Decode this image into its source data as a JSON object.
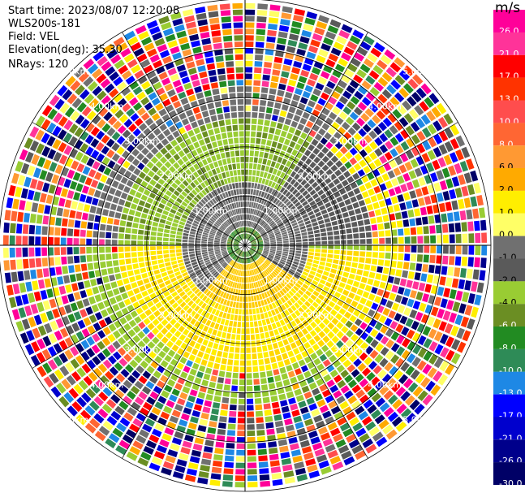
{
  "header": {
    "start_time": "Start time: 2023/08/07 12:20:08",
    "instrument": "WLS200s-181",
    "field": "Field: VEL",
    "elevation": "Elevation(deg): 35.30",
    "nrays": "NRays: 120"
  },
  "colorbar": {
    "unit": "m/s",
    "ticks": [
      "26.0",
      "21.0",
      "17.0",
      "13.0",
      "10.0",
      "8.0",
      "6.0",
      "2.0",
      "1.0",
      "0.0",
      "-1.0",
      "-2.0",
      "-4.0",
      "-6.0",
      "-8.0",
      "-10.0",
      "-13.0",
      "-17.0",
      "-21.0",
      "-26.0",
      "-30.0"
    ],
    "colors": [
      "#ff0099",
      "#ff3399",
      "#ff0000",
      "#ff3300",
      "#ff4d4d",
      "#ff6633",
      "#ff9933",
      "#ffaa00",
      "#ffee00",
      "#ffff66",
      "#707070",
      "#5a5a5a",
      "#99cc33",
      "#6b8e23",
      "#228b22",
      "#2e8b57",
      "#1e88e5",
      "#0000ff",
      "#0000cd",
      "#00008b",
      "#000066"
    ]
  },
  "range_labels": [
    "1.00km",
    "2.00km",
    "3.00km",
    "4.00km",
    "5.00km"
  ],
  "chart_data": {
    "type": "heatmap",
    "projection": "polar (PPI)",
    "field": "VEL",
    "units": "m/s",
    "nrays": 120,
    "elevation_deg": 35.3,
    "range_rings_km": [
      1,
      2,
      3,
      4,
      5
    ],
    "max_range_km": 5.0,
    "colorbar_range": [
      -30.0,
      26.0
    ]
  }
}
